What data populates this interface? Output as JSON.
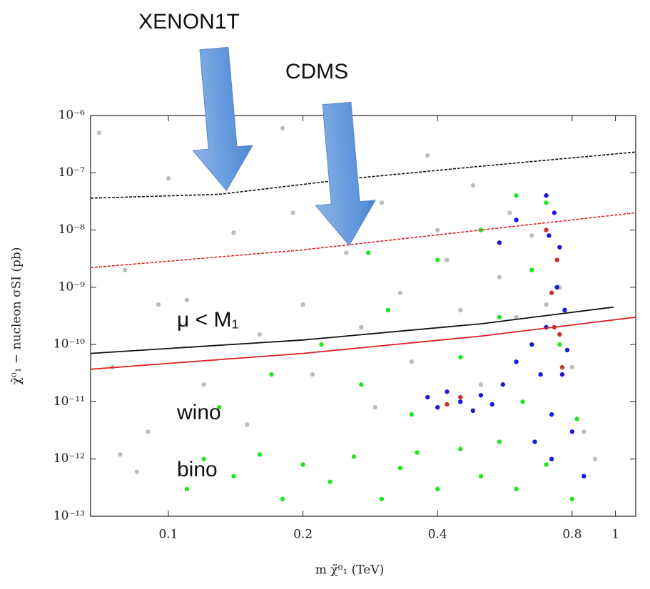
{
  "chart_data": {
    "type": "scatter",
    "x_label": "m χ̃⁰₁ (TeV)",
    "y_label": "χ̃⁰₁ − nucleon σSI (pb)",
    "log_x": true,
    "log_y": true,
    "xlim": [
      0.067,
      1.11
    ],
    "ylim": [
      1e-13,
      1e-06
    ],
    "xticks": [
      0.1,
      0.2,
      0.4,
      0.8,
      1
    ],
    "yticks": [
      {
        "value": 1e-13,
        "label": "10⁻¹³"
      },
      {
        "value": 1e-12,
        "label": "10⁻¹²"
      },
      {
        "value": 1e-11,
        "label": "10⁻¹¹"
      },
      {
        "value": 1e-10,
        "label": "10⁻¹⁰"
      },
      {
        "value": 1e-09,
        "label": "10⁻⁹"
      },
      {
        "value": 1e-08,
        "label": "10⁻⁸"
      },
      {
        "value": 1e-07,
        "label": "10⁻⁷"
      },
      {
        "value": 1e-06,
        "label": "10⁻⁶"
      }
    ],
    "series": [
      {
        "color": "#bdbdbd",
        "x": [
          0.07,
          0.08,
          0.09,
          0.075,
          0.1,
          0.11,
          0.12,
          0.13,
          0.14,
          0.15,
          0.16,
          0.18,
          0.19,
          0.2,
          0.21,
          0.23,
          0.25,
          0.27,
          0.29,
          0.3,
          0.33,
          0.35,
          0.38,
          0.4,
          0.42,
          0.45,
          0.48,
          0.5,
          0.55,
          0.58,
          0.6,
          0.65,
          0.7,
          0.75,
          0.8,
          0.85,
          0.9,
          0.078,
          0.085,
          0.095
        ],
        "values": [
          5e-07,
          2e-09,
          3e-12,
          4e-11,
          8e-08,
          6e-10,
          2e-11,
          3e-07,
          9e-09,
          4e-12,
          1.5e-10,
          6e-07,
          2e-08,
          5e-10,
          3e-11,
          1e-07,
          4e-09,
          2e-10,
          8e-12,
          3e-08,
          8e-10,
          5e-11,
          2e-07,
          1e-08,
          3e-09,
          4e-10,
          6e-08,
          2e-11,
          1.5e-09,
          2e-08,
          3e-10,
          8e-09,
          5e-10,
          1e-09,
          4e-11,
          3e-12,
          1e-12,
          1.2e-12,
          6e-13,
          5e-10
        ]
      },
      {
        "color": "#22e622",
        "x": [
          0.11,
          0.12,
          0.14,
          0.16,
          0.18,
          0.2,
          0.23,
          0.26,
          0.3,
          0.33,
          0.36,
          0.4,
          0.45,
          0.5,
          0.55,
          0.6,
          0.7,
          0.8,
          0.13,
          0.17,
          0.22,
          0.27,
          0.31,
          0.35,
          0.4,
          0.45,
          0.5,
          0.55,
          0.6,
          0.65,
          0.7,
          0.75,
          0.82,
          0.28,
          0.62
        ],
        "values": [
          3e-13,
          1e-12,
          5e-13,
          1.2e-12,
          2e-13,
          8e-13,
          4e-13,
          1.1e-12,
          2e-13,
          7e-13,
          1.3e-12,
          3e-13,
          1.5e-12,
          5e-13,
          2e-12,
          3e-13,
          8e-13,
          2e-13,
          8e-12,
          3e-11,
          1e-10,
          2e-11,
          4e-10,
          6e-12,
          3e-09,
          6e-11,
          1e-08,
          3e-10,
          4e-08,
          2e-09,
          3e-08,
          1e-10,
          5e-12,
          4e-09,
          1e-11
        ]
      },
      {
        "color": "#1a1ad6",
        "x": [
          0.38,
          0.4,
          0.42,
          0.45,
          0.48,
          0.5,
          0.53,
          0.56,
          0.6,
          0.65,
          0.68,
          0.7,
          0.72,
          0.74,
          0.75,
          0.73,
          0.7,
          0.76,
          0.78,
          0.8,
          0.72,
          0.85,
          0.66,
          0.77,
          0.71,
          0.6,
          0.55
        ],
        "values": [
          1.2e-11,
          8e-12,
          1.5e-11,
          1e-11,
          7e-12,
          1.3e-11,
          9e-12,
          2e-11,
          5e-11,
          1e-10,
          3e-11,
          2e-10,
          6e-12,
          1e-09,
          5e-09,
          2e-08,
          4e-08,
          3e-11,
          8e-11,
          3e-12,
          1e-12,
          5e-13,
          2e-12,
          4e-10,
          8e-09,
          1.5e-08,
          6e-09
        ]
      },
      {
        "color": "#c83030",
        "x": [
          0.73,
          0.75,
          0.74,
          0.72,
          0.45,
          0.42,
          0.76,
          0.7
        ],
        "values": [
          2e-10,
          1.5e-10,
          3e-09,
          8e-10,
          1.2e-11,
          9e-12,
          4e-11,
          1e-08
        ]
      }
    ],
    "lines": [
      {
        "color": "#111111",
        "dashed": true,
        "x": [
          0.067,
          0.13,
          0.26,
          0.5,
          1.11
        ],
        "values": [
          3.6e-08,
          4.2e-08,
          8e-08,
          1.3e-07,
          2.3e-07
        ]
      },
      {
        "color": "#e02020",
        "dashed": true,
        "x": [
          0.067,
          0.2,
          0.5,
          1.11
        ],
        "values": [
          2.2e-09,
          4.5e-09,
          1e-08,
          2e-08
        ]
      },
      {
        "color": "#111111",
        "dashed": false,
        "x": [
          0.067,
          0.2,
          0.5,
          0.99
        ],
        "values": [
          7e-11,
          1.2e-10,
          2.3e-10,
          4.5e-10
        ]
      },
      {
        "color": "#e02020",
        "dashed": false,
        "x": [
          0.067,
          0.2,
          0.5,
          1.11
        ],
        "values": [
          3.7e-11,
          7e-11,
          1.4e-10,
          3e-10
        ]
      }
    ],
    "annotations": [
      "XENON1T",
      "CDMS",
      "μ < M₁",
      "wino",
      "bino"
    ]
  }
}
